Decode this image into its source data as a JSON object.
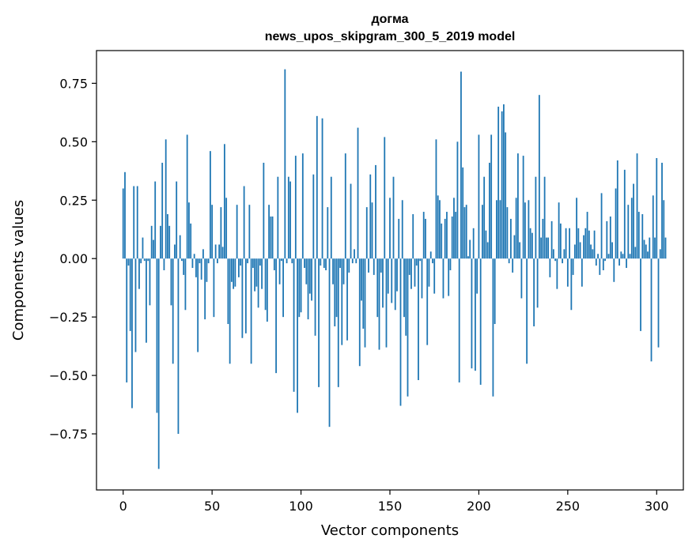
{
  "chart_data": {
    "type": "bar",
    "title_line1": "догма",
    "title_line2": "news_upos_skipgram_300_5_2019 model",
    "xlabel": "Vector components",
    "ylabel": "Components values",
    "xlim": [
      -15,
      315
    ],
    "ylim": [
      -0.99,
      0.89
    ],
    "xticks": [
      0,
      50,
      100,
      150,
      200,
      250,
      300
    ],
    "yticks": [
      -0.75,
      -0.5,
      -0.25,
      0.0,
      0.25,
      0.5,
      0.75
    ],
    "ytick_labels": [
      "−0.75",
      "−0.50",
      "−0.25",
      "0.00",
      "0.25",
      "0.50",
      "0.75"
    ],
    "bar_color": "#1f77b4",
    "grid": false,
    "values": [
      0.3,
      0.37,
      -0.53,
      -0.03,
      -0.31,
      -0.64,
      0.31,
      -0.4,
      0.31,
      -0.13,
      -0.02,
      0.09,
      -0.01,
      -0.36,
      -0.01,
      -0.2,
      0.14,
      0.08,
      0.33,
      -0.66,
      -0.9,
      0.14,
      0.41,
      -0.05,
      0.51,
      0.19,
      0.14,
      -0.2,
      -0.45,
      0.06,
      0.33,
      -0.75,
      0.1,
      -0.01,
      -0.07,
      -0.22,
      0.53,
      0.24,
      0.15,
      -0.04,
      0.02,
      -0.08,
      -0.4,
      -0.02,
      -0.09,
      0.04,
      -0.26,
      -0.1,
      -0.02,
      0.46,
      0.23,
      -0.25,
      0.06,
      -0.02,
      0.06,
      0.22,
      0.05,
      0.49,
      0.26,
      -0.28,
      -0.45,
      -0.1,
      -0.13,
      -0.12,
      0.23,
      -0.08,
      -0.03,
      -0.34,
      0.31,
      -0.32,
      -0.02,
      0.23,
      -0.45,
      -0.04,
      -0.14,
      -0.12,
      -0.21,
      -0.03,
      -0.13,
      0.41,
      -0.22,
      -0.27,
      0.23,
      0.18,
      0.18,
      -0.05,
      -0.49,
      0.35,
      -0.11,
      -0.01,
      -0.25,
      0.81,
      -0.02,
      0.35,
      0.33,
      -0.02,
      -0.57,
      0.44,
      -0.66,
      -0.25,
      -0.23,
      0.45,
      -0.04,
      -0.11,
      -0.26,
      -0.15,
      -0.18,
      0.36,
      -0.33,
      0.61,
      -0.55,
      -0.03,
      0.6,
      -0.04,
      -0.05,
      0.22,
      -0.72,
      0.35,
      -0.11,
      -0.29,
      -0.25,
      -0.55,
      -0.04,
      -0.37,
      -0.11,
      0.45,
      -0.35,
      -0.06,
      0.32,
      -0.02,
      0.04,
      -0.02,
      0.56,
      -0.46,
      -0.18,
      -0.3,
      -0.38,
      0.22,
      -0.06,
      0.36,
      0.24,
      -0.07,
      0.4,
      -0.25,
      -0.39,
      -0.06,
      -0.21,
      0.52,
      -0.38,
      -0.15,
      0.26,
      -0.19,
      0.35,
      -0.22,
      -0.14,
      0.17,
      -0.63,
      0.25,
      -0.25,
      -0.33,
      -0.59,
      -0.07,
      -0.13,
      0.19,
      -0.12,
      -0.03,
      -0.52,
      -0.01,
      -0.17,
      0.2,
      0.17,
      -0.37,
      -0.12,
      0.03,
      -0.02,
      -0.15,
      0.51,
      0.27,
      0.25,
      0.15,
      -0.17,
      0.17,
      0.2,
      -0.16,
      -0.05,
      0.18,
      0.26,
      0.2,
      0.5,
      -0.53,
      0.8,
      0.39,
      0.22,
      0.23,
      0.01,
      0.08,
      -0.47,
      0.13,
      -0.48,
      -0.15,
      0.53,
      -0.54,
      0.23,
      0.35,
      0.12,
      0.07,
      0.41,
      0.53,
      -0.59,
      -0.28,
      0.25,
      0.65,
      0.25,
      0.63,
      0.66,
      0.54,
      0.22,
      -0.02,
      0.17,
      -0.06,
      0.1,
      0.26,
      0.45,
      0.07,
      -0.17,
      0.44,
      0.24,
      -0.45,
      0.25,
      0.13,
      0.11,
      -0.29,
      0.35,
      -0.21,
      0.7,
      0.09,
      0.17,
      0.35,
      0.09,
      0.09,
      -0.08,
      0.16,
      0.04,
      -0.01,
      -0.13,
      0.24,
      0.15,
      -0.02,
      0.04,
      0.13,
      -0.12,
      0.13,
      -0.22,
      -0.07,
      0.06,
      0.26,
      0.13,
      0.07,
      -0.12,
      0.1,
      0.13,
      0.2,
      0.12,
      0.06,
      0.04,
      0.12,
      -0.03,
      0.02,
      -0.07,
      0.28,
      -0.05,
      -0.01,
      0.16,
      0.02,
      0.18,
      0.07,
      -0.1,
      0.3,
      0.42,
      -0.03,
      0.03,
      0.02,
      0.38,
      -0.04,
      0.23,
      0.02,
      0.26,
      0.32,
      0.05,
      0.45,
      0.2,
      -0.31,
      0.19,
      0.08,
      0.06,
      0.03,
      0.09,
      -0.44,
      0.27,
      0.09,
      0.43,
      -0.38,
      0.04,
      0.41,
      0.25,
      0.09
    ]
  }
}
